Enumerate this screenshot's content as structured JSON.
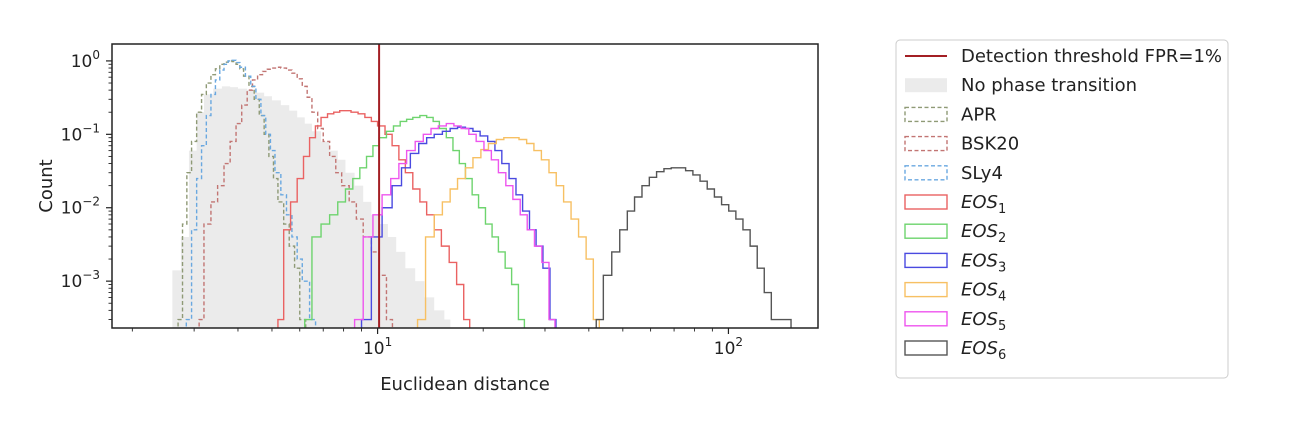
{
  "chart_data": {
    "type": "histogram",
    "title": "",
    "xlabel": "Euclidean distance",
    "ylabel": "Count",
    "xscale": "log",
    "yscale": "log",
    "xlim": [
      1.75,
      180
    ],
    "ylim": [
      0.00023,
      1.7
    ],
    "grid": false,
    "legend_placement": "outside-right",
    "x_ticks": [
      {
        "value": 10,
        "base": "10",
        "exp": "1"
      },
      {
        "value": 100,
        "base": "10",
        "exp": "2"
      }
    ],
    "y_ticks": [
      {
        "value": 0.001,
        "base": "10",
        "exp": "−3"
      },
      {
        "value": 0.01,
        "base": "10",
        "exp": "−2"
      },
      {
        "value": 0.1,
        "base": "10",
        "exp": "−1"
      },
      {
        "value": 1,
        "base": "10",
        "exp": "0"
      }
    ],
    "threshold": {
      "label": "Detection threshold FPR=1%",
      "x": 10.1,
      "color": "#a31f24"
    },
    "series": [
      {
        "name": "No phase transition",
        "style": "filled",
        "color": "#ebebeb",
        "points": [
          [
            2.6,
            0.0014
          ],
          [
            2.75,
            0.004
          ],
          [
            2.9,
            0.06
          ],
          [
            3.05,
            0.2
          ],
          [
            3.2,
            0.35
          ],
          [
            3.4,
            0.42
          ],
          [
            3.6,
            0.45
          ],
          [
            3.8,
            0.44
          ],
          [
            4.0,
            0.42
          ],
          [
            4.25,
            0.4
          ],
          [
            4.5,
            0.37
          ],
          [
            4.75,
            0.33
          ],
          [
            5.0,
            0.29
          ],
          [
            5.3,
            0.25
          ],
          [
            5.6,
            0.21
          ],
          [
            5.9,
            0.17
          ],
          [
            6.2,
            0.14
          ],
          [
            6.5,
            0.11
          ],
          [
            6.9,
            0.08
          ],
          [
            7.3,
            0.06
          ],
          [
            7.7,
            0.045
          ],
          [
            8.1,
            0.03
          ],
          [
            8.6,
            0.02
          ],
          [
            9.1,
            0.012
          ],
          [
            9.6,
            0.008
          ],
          [
            10.1,
            0.006
          ],
          [
            10.7,
            0.004
          ],
          [
            11.3,
            0.0025
          ],
          [
            12.0,
            0.0015
          ],
          [
            12.8,
            0.001
          ],
          [
            13.6,
            0.0006
          ],
          [
            14.5,
            0.0004
          ],
          [
            15.5,
            0.0003
          ]
        ]
      },
      {
        "name": "APR",
        "style": "dashed",
        "color": "#8f9a76",
        "points": [
          [
            2.7,
            0.0003
          ],
          [
            2.78,
            0.006
          ],
          [
            2.86,
            0.03
          ],
          [
            2.95,
            0.08
          ],
          [
            3.05,
            0.2
          ],
          [
            3.15,
            0.35
          ],
          [
            3.25,
            0.5
          ],
          [
            3.35,
            0.65
          ],
          [
            3.45,
            0.78
          ],
          [
            3.55,
            0.9
          ],
          [
            3.65,
            0.96
          ],
          [
            3.75,
            1.0
          ],
          [
            3.85,
            0.98
          ],
          [
            3.95,
            0.9
          ],
          [
            4.05,
            0.78
          ],
          [
            4.15,
            0.62
          ],
          [
            4.3,
            0.45
          ],
          [
            4.45,
            0.3
          ],
          [
            4.6,
            0.18
          ],
          [
            4.75,
            0.1
          ],
          [
            4.9,
            0.05
          ],
          [
            5.05,
            0.025
          ],
          [
            5.2,
            0.012
          ],
          [
            5.4,
            0.006
          ],
          [
            5.6,
            0.003
          ],
          [
            5.8,
            0.0015
          ],
          [
            6.0,
            0.0003
          ]
        ]
      },
      {
        "name": "BSK20",
        "style": "dashed",
        "color": "#c27573",
        "points": [
          [
            3.1,
            0.0003
          ],
          [
            3.2,
            0.006
          ],
          [
            3.35,
            0.012
          ],
          [
            3.5,
            0.02
          ],
          [
            3.65,
            0.04
          ],
          [
            3.8,
            0.08
          ],
          [
            3.95,
            0.14
          ],
          [
            4.1,
            0.25
          ],
          [
            4.25,
            0.4
          ],
          [
            4.4,
            0.55
          ],
          [
            4.55,
            0.65
          ],
          [
            4.7,
            0.72
          ],
          [
            4.85,
            0.77
          ],
          [
            5.0,
            0.8
          ],
          [
            5.15,
            0.82
          ],
          [
            5.3,
            0.8
          ],
          [
            5.5,
            0.75
          ],
          [
            5.7,
            0.68
          ],
          [
            5.9,
            0.57
          ],
          [
            6.1,
            0.45
          ],
          [
            6.3,
            0.32
          ],
          [
            6.5,
            0.2
          ],
          [
            6.75,
            0.12
          ],
          [
            7.0,
            0.08
          ],
          [
            7.3,
            0.05
          ],
          [
            7.6,
            0.03
          ],
          [
            7.9,
            0.02
          ],
          [
            8.3,
            0.012
          ],
          [
            8.7,
            0.007
          ],
          [
            9.1,
            0.004
          ],
          [
            9.6,
            0.0025
          ],
          [
            10.1,
            0.0012
          ],
          [
            10.6,
            0.0003
          ]
        ]
      },
      {
        "name": "SLy4",
        "style": "dashed",
        "color": "#6aa8e0",
        "points": [
          [
            2.85,
            0.0003
          ],
          [
            2.95,
            0.005
          ],
          [
            3.05,
            0.025
          ],
          [
            3.15,
            0.07
          ],
          [
            3.25,
            0.18
          ],
          [
            3.35,
            0.35
          ],
          [
            3.45,
            0.55
          ],
          [
            3.55,
            0.75
          ],
          [
            3.65,
            0.9
          ],
          [
            3.75,
            1.0
          ],
          [
            3.85,
            1.02
          ],
          [
            3.95,
            0.95
          ],
          [
            4.05,
            0.82
          ],
          [
            4.2,
            0.62
          ],
          [
            4.35,
            0.45
          ],
          [
            4.5,
            0.3
          ],
          [
            4.65,
            0.18
          ],
          [
            4.8,
            0.1
          ],
          [
            4.95,
            0.06
          ],
          [
            5.1,
            0.03
          ],
          [
            5.3,
            0.015
          ],
          [
            5.5,
            0.008
          ],
          [
            5.7,
            0.004
          ],
          [
            5.9,
            0.002
          ],
          [
            6.1,
            0.001
          ],
          [
            6.4,
            0.0003
          ]
        ]
      },
      {
        "name": "EOS",
        "sub": "1",
        "style": "step",
        "color": "#ea6262",
        "points": [
          [
            5.2,
            0.0003
          ],
          [
            5.4,
            0.005
          ],
          [
            5.65,
            0.012
          ],
          [
            5.9,
            0.025
          ],
          [
            6.15,
            0.05
          ],
          [
            6.4,
            0.09
          ],
          [
            6.65,
            0.13
          ],
          [
            6.9,
            0.17
          ],
          [
            7.2,
            0.19
          ],
          [
            7.5,
            0.2
          ],
          [
            7.8,
            0.21
          ],
          [
            8.1,
            0.21
          ],
          [
            8.4,
            0.2
          ],
          [
            8.8,
            0.19
          ],
          [
            9.2,
            0.17
          ],
          [
            9.6,
            0.15
          ],
          [
            10.0,
            0.13
          ],
          [
            10.5,
            0.1
          ],
          [
            11.0,
            0.07
          ],
          [
            11.5,
            0.045
          ],
          [
            12.0,
            0.03
          ],
          [
            12.6,
            0.018
          ],
          [
            13.2,
            0.012
          ],
          [
            13.8,
            0.008
          ],
          [
            14.5,
            0.005
          ],
          [
            15.2,
            0.003
          ],
          [
            16.0,
            0.0018
          ],
          [
            16.8,
            0.0009
          ],
          [
            17.6,
            0.0003
          ]
        ]
      },
      {
        "name": "EOS",
        "sub": "2",
        "style": "step",
        "color": "#6ed46e",
        "points": [
          [
            6.2,
            0.0003
          ],
          [
            6.5,
            0.004
          ],
          [
            6.9,
            0.006
          ],
          [
            7.3,
            0.008
          ],
          [
            7.7,
            0.012
          ],
          [
            8.1,
            0.018
          ],
          [
            8.5,
            0.025
          ],
          [
            8.9,
            0.035
          ],
          [
            9.3,
            0.05
          ],
          [
            9.7,
            0.07
          ],
          [
            10.1,
            0.09
          ],
          [
            10.6,
            0.11
          ],
          [
            11.1,
            0.13
          ],
          [
            11.6,
            0.15
          ],
          [
            12.1,
            0.16
          ],
          [
            12.6,
            0.17
          ],
          [
            13.2,
            0.18
          ],
          [
            13.8,
            0.17
          ],
          [
            14.4,
            0.15
          ],
          [
            15.0,
            0.12
          ],
          [
            15.7,
            0.09
          ],
          [
            16.4,
            0.06
          ],
          [
            17.1,
            0.04
          ],
          [
            17.8,
            0.025
          ],
          [
            18.6,
            0.015
          ],
          [
            19.4,
            0.01
          ],
          [
            20.3,
            0.006
          ],
          [
            21.2,
            0.004
          ],
          [
            22.1,
            0.0025
          ],
          [
            23.1,
            0.0015
          ],
          [
            24.1,
            0.0009
          ],
          [
            25.2,
            0.0003
          ]
        ]
      },
      {
        "name": "EOS",
        "sub": "3",
        "style": "step",
        "color": "#4a4ae0",
        "points": [
          [
            9.0,
            0.0003
          ],
          [
            9.6,
            0.004
          ],
          [
            10.3,
            0.01
          ],
          [
            11.0,
            0.02
          ],
          [
            11.7,
            0.035
          ],
          [
            12.4,
            0.055
          ],
          [
            13.1,
            0.075
          ],
          [
            13.8,
            0.09
          ],
          [
            14.5,
            0.1
          ],
          [
            15.3,
            0.11
          ],
          [
            16.1,
            0.12
          ],
          [
            16.9,
            0.125
          ],
          [
            17.8,
            0.12
          ],
          [
            18.7,
            0.11
          ],
          [
            19.6,
            0.095
          ],
          [
            20.6,
            0.08
          ],
          [
            21.6,
            0.06
          ],
          [
            22.6,
            0.04
          ],
          [
            23.7,
            0.025
          ],
          [
            24.8,
            0.015
          ],
          [
            25.9,
            0.009
          ],
          [
            27.1,
            0.005
          ],
          [
            28.3,
            0.003
          ],
          [
            29.6,
            0.0015
          ],
          [
            31.0,
            0.0003
          ]
        ]
      },
      {
        "name": "EOS",
        "sub": "4",
        "style": "step",
        "color": "#f7c063",
        "points": [
          [
            13.0,
            0.0003
          ],
          [
            13.7,
            0.004
          ],
          [
            14.5,
            0.008
          ],
          [
            15.3,
            0.012
          ],
          [
            16.1,
            0.018
          ],
          [
            16.9,
            0.025
          ],
          [
            17.8,
            0.035
          ],
          [
            18.7,
            0.048
          ],
          [
            19.7,
            0.062
          ],
          [
            20.7,
            0.075
          ],
          [
            21.8,
            0.085
          ],
          [
            22.9,
            0.09
          ],
          [
            24.1,
            0.09
          ],
          [
            25.3,
            0.085
          ],
          [
            26.6,
            0.075
          ],
          [
            27.9,
            0.06
          ],
          [
            29.3,
            0.045
          ],
          [
            30.8,
            0.03
          ],
          [
            32.3,
            0.02
          ],
          [
            33.9,
            0.012
          ],
          [
            35.6,
            0.007
          ],
          [
            37.4,
            0.004
          ],
          [
            39.3,
            0.002
          ],
          [
            41.2,
            0.0003
          ]
        ]
      },
      {
        "name": "EOS",
        "sub": "5",
        "style": "step",
        "color": "#ee55ee",
        "points": [
          [
            8.6,
            0.0003
          ],
          [
            9.1,
            0.004
          ],
          [
            9.7,
            0.008
          ],
          [
            10.3,
            0.015
          ],
          [
            10.9,
            0.025
          ],
          [
            11.5,
            0.04
          ],
          [
            12.1,
            0.06
          ],
          [
            12.8,
            0.08
          ],
          [
            13.5,
            0.1
          ],
          [
            14.2,
            0.12
          ],
          [
            14.9,
            0.13
          ],
          [
            15.7,
            0.14
          ],
          [
            16.5,
            0.13
          ],
          [
            17.3,
            0.12
          ],
          [
            18.2,
            0.1
          ],
          [
            19.1,
            0.08
          ],
          [
            20.1,
            0.06
          ],
          [
            21.1,
            0.045
          ],
          [
            22.1,
            0.03
          ],
          [
            23.2,
            0.02
          ],
          [
            24.3,
            0.013
          ],
          [
            25.5,
            0.008
          ],
          [
            26.7,
            0.005
          ],
          [
            28.0,
            0.003
          ],
          [
            29.4,
            0.0018
          ],
          [
            30.8,
            0.0003
          ]
        ]
      },
      {
        "name": "EOS",
        "sub": "6",
        "style": "step",
        "color": "#555555",
        "points": [
          [
            42.0,
            0.0003
          ],
          [
            44.0,
            0.0012
          ],
          [
            46.5,
            0.0025
          ],
          [
            49.0,
            0.005
          ],
          [
            51.5,
            0.009
          ],
          [
            54.0,
            0.014
          ],
          [
            56.7,
            0.02
          ],
          [
            59.5,
            0.026
          ],
          [
            62.4,
            0.031
          ],
          [
            65.5,
            0.034
          ],
          [
            68.7,
            0.035
          ],
          [
            72.0,
            0.035
          ],
          [
            75.5,
            0.032
          ],
          [
            79.2,
            0.028
          ],
          [
            83.0,
            0.023
          ],
          [
            87.0,
            0.018
          ],
          [
            91.2,
            0.014
          ],
          [
            95.6,
            0.011
          ],
          [
            100.2,
            0.009
          ],
          [
            105.0,
            0.007
          ],
          [
            110.0,
            0.005
          ],
          [
            115.3,
            0.003
          ],
          [
            120.8,
            0.0015
          ],
          [
            126.5,
            0.0007
          ],
          [
            132.5,
            0.0003
          ],
          [
            139.0,
            0.0003
          ],
          [
            145.0,
            0.0003
          ]
        ]
      }
    ]
  }
}
